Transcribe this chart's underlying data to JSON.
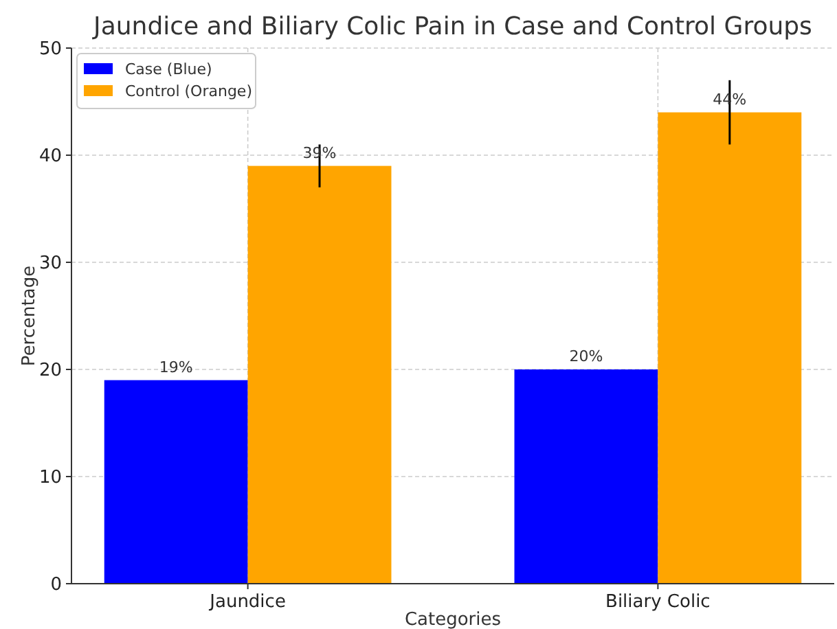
{
  "chart_data": {
    "type": "bar",
    "title": "Jaundice and Biliary Colic Pain in Case and Control Groups",
    "xlabel": "Categories",
    "ylabel": "Percentage",
    "categories": [
      "Jaundice",
      "Biliary Colic"
    ],
    "series": [
      {
        "name": "Case (Blue)",
        "color": "#0000ff",
        "values": [
          19,
          20
        ],
        "value_labels": [
          "19%",
          "20%"
        ]
      },
      {
        "name": "Control (Orange)",
        "color": "#ffa500",
        "values": [
          39,
          44
        ],
        "value_labels": [
          "39%",
          "44%"
        ],
        "errors": [
          2,
          3
        ]
      }
    ],
    "ylim": [
      0,
      50
    ],
    "yticks": [
      0,
      10,
      20,
      30,
      40,
      50
    ],
    "grid": true,
    "legend": "top left"
  }
}
